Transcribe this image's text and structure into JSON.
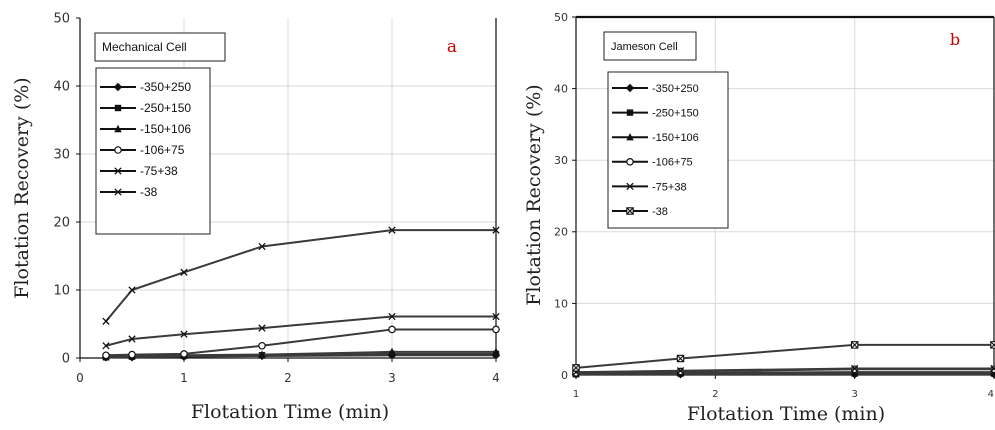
{
  "chart_data": [
    {
      "type": "line",
      "panel_label": "a",
      "title": "Mechanical Cell",
      "xlabel": "Flotation Time (min)",
      "ylabel": "Flotation Recovery (%)",
      "xlim": [
        0,
        4
      ],
      "ylim": [
        0,
        50
      ],
      "xticks": [
        "0",
        "1",
        "2",
        "3",
        "4"
      ],
      "yticks": [
        "0",
        "10",
        "20",
        "30",
        "40",
        "50"
      ],
      "grid": true,
      "legend_position": "top-left",
      "series": [
        {
          "name": "-350+250",
          "marker": "diamond",
          "x": [
            0.25,
            0.5,
            1,
            1.75,
            3,
            4
          ],
          "y": [
            0.1,
            0.1,
            0.2,
            0.3,
            0.4,
            0.4
          ]
        },
        {
          "name": "-250+150",
          "marker": "square",
          "x": [
            0.25,
            0.5,
            1,
            1.75,
            3,
            4
          ],
          "y": [
            0.1,
            0.2,
            0.3,
            0.4,
            0.6,
            0.6
          ]
        },
        {
          "name": "-150+106",
          "marker": "triangle",
          "x": [
            0.25,
            0.5,
            1,
            1.75,
            3,
            4
          ],
          "y": [
            0.2,
            0.3,
            0.4,
            0.5,
            0.9,
            0.9
          ]
        },
        {
          "name": "-106+75",
          "marker": "circle",
          "x": [
            0.25,
            0.5,
            1,
            1.75,
            3,
            4
          ],
          "y": [
            0.4,
            0.5,
            0.6,
            1.8,
            4.2,
            4.2
          ]
        },
        {
          "name": "-75+38",
          "marker": "x",
          "x": [
            0.25,
            0.5,
            1,
            1.75,
            3,
            4
          ],
          "y": [
            1.8,
            2.8,
            3.5,
            4.4,
            6.1,
            6.1
          ]
        },
        {
          "name": "-38",
          "marker": "x",
          "x": [
            0.25,
            0.5,
            1,
            1.75,
            3,
            4
          ],
          "y": [
            5.4,
            10.0,
            12.6,
            16.4,
            18.8,
            18.8
          ]
        }
      ]
    },
    {
      "type": "line",
      "panel_label": "b",
      "title": "Jameson Cell",
      "xlabel": "Flotation Time (min)",
      "ylabel": "Flotation Recovery (%)",
      "xlim": [
        1,
        4
      ],
      "ylim": [
        0,
        50
      ],
      "xticks": [
        "1",
        "2",
        "3",
        "4"
      ],
      "yticks": [
        "0",
        "10",
        "20",
        "30",
        "40",
        "50"
      ],
      "grid": true,
      "legend_position": "top-left",
      "series": [
        {
          "name": "-350+250",
          "marker": "diamond",
          "x": [
            1,
            1.75,
            3,
            4
          ],
          "y": [
            0.1,
            0.1,
            0.1,
            0.1
          ]
        },
        {
          "name": "-250+150",
          "marker": "square",
          "x": [
            1,
            1.75,
            3,
            4
          ],
          "y": [
            0.1,
            0.2,
            0.2,
            0.2
          ]
        },
        {
          "name": "-150+106",
          "marker": "triangle",
          "x": [
            1,
            1.75,
            3,
            4
          ],
          "y": [
            0.2,
            0.3,
            0.4,
            0.4
          ]
        },
        {
          "name": "-106+75",
          "marker": "circle",
          "x": [
            1,
            1.75,
            3,
            4
          ],
          "y": [
            0.3,
            0.5,
            0.8,
            0.8
          ]
        },
        {
          "name": "-75+38",
          "marker": "x",
          "x": [
            1,
            1.75,
            3,
            4
          ],
          "y": [
            0.4,
            0.6,
            0.9,
            0.9
          ]
        },
        {
          "name": "-38",
          "marker": "boxed-x",
          "x": [
            1,
            1.75,
            3,
            4
          ],
          "y": [
            1.0,
            2.3,
            4.2,
            4.2
          ]
        }
      ]
    }
  ]
}
